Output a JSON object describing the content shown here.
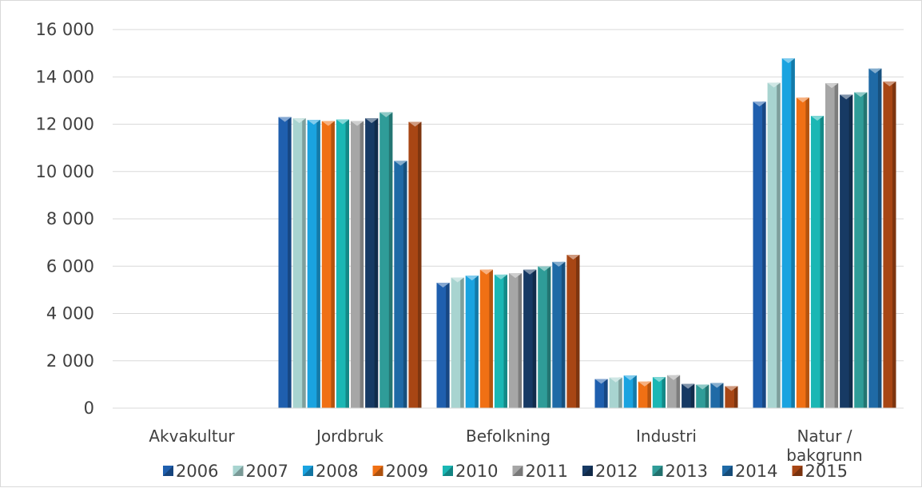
{
  "chart_data": {
    "type": "bar",
    "title": "",
    "xlabel": "",
    "ylabel": "",
    "ylim": [
      0,
      16000
    ],
    "yticks": [
      0,
      2000,
      4000,
      6000,
      8000,
      10000,
      12000,
      14000,
      16000
    ],
    "ytick_labels": [
      "0",
      "2 000",
      "4 000",
      "6 000",
      "8 000",
      "10 000",
      "12 000",
      "14 000",
      "16 000"
    ],
    "grid": true,
    "legend_position": "bottom",
    "categories": [
      {
        "label_lines": [
          "Akvakultur"
        ]
      },
      {
        "label_lines": [
          "Jordbruk"
        ]
      },
      {
        "label_lines": [
          "Befolkning"
        ]
      },
      {
        "label_lines": [
          "Industri"
        ]
      },
      {
        "label_lines": [
          "Natur /",
          "bakgrunn"
        ]
      }
    ],
    "series": [
      {
        "name": "2006",
        "color": "#1f5fae",
        "values": [
          0,
          12300,
          5300,
          1230,
          12950
        ]
      },
      {
        "name": "2007",
        "color": "#a8d4d0",
        "values": [
          0,
          12250,
          5520,
          1290,
          13750
        ]
      },
      {
        "name": "2008",
        "color": "#1aa3e0",
        "values": [
          0,
          12180,
          5600,
          1380,
          14780
        ]
      },
      {
        "name": "2009",
        "color": "#f07014",
        "values": [
          0,
          12130,
          5850,
          1120,
          13120
        ]
      },
      {
        "name": "2010",
        "color": "#1ab7b4",
        "values": [
          0,
          12200,
          5640,
          1310,
          12350
        ]
      },
      {
        "name": "2011",
        "color": "#a6a6a6",
        "values": [
          0,
          12130,
          5700,
          1390,
          13730
        ]
      },
      {
        "name": "2012",
        "color": "#173a64",
        "values": [
          0,
          12250,
          5850,
          1020,
          13250
        ]
      },
      {
        "name": "2013",
        "color": "#2f9c98",
        "values": [
          0,
          12500,
          5990,
          990,
          13350
        ]
      },
      {
        "name": "2014",
        "color": "#1f6aa6",
        "values": [
          0,
          10450,
          6180,
          1060,
          14350
        ]
      },
      {
        "name": "2015",
        "color": "#a84614",
        "values": [
          0,
          12100,
          6480,
          930,
          13800
        ]
      }
    ]
  }
}
